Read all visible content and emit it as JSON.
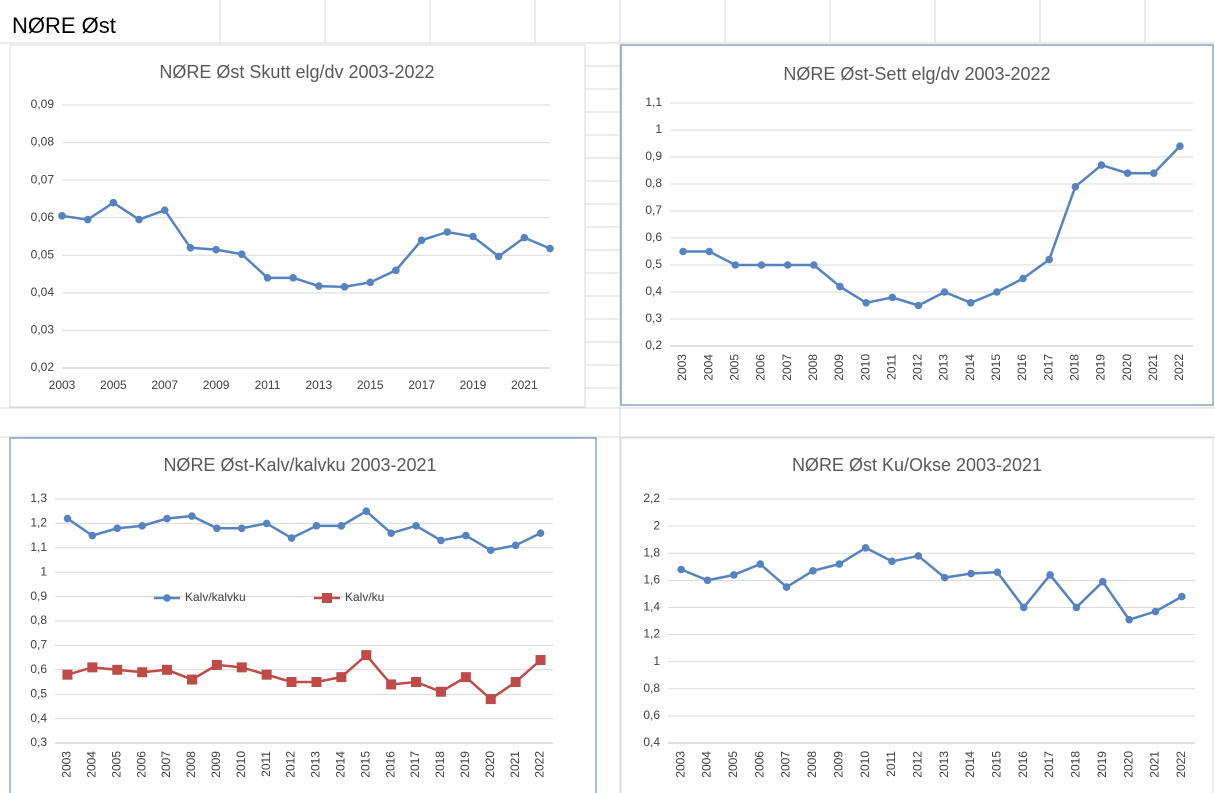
{
  "sheet_title": "NØRE Øst",
  "chart_data": [
    {
      "type": "line",
      "title": "NØRE Øst Skutt elg/dv 2003-2022",
      "categories": [
        "2003",
        null,
        "2005",
        null,
        "2007",
        null,
        "2009",
        null,
        "2011",
        null,
        "2013",
        null,
        "2015",
        null,
        "2017",
        null,
        "2019",
        null,
        "2021",
        null
      ],
      "values": [
        0.0605,
        0.0595,
        0.064,
        0.0595,
        0.062,
        0.052,
        0.0515,
        0.0503,
        0.044,
        0.044,
        0.0418,
        0.0416,
        0.0428,
        0.046,
        0.054,
        0.0562,
        0.055,
        0.0497,
        0.0547,
        0.0518
      ],
      "color": "#5683c0",
      "ylim": [
        0.02,
        0.09
      ],
      "yticks": [
        {
          "value": 0.02,
          "label": "0,02"
        },
        {
          "value": 0.03,
          "label": "0,03"
        },
        {
          "value": 0.04,
          "label": "0,04"
        },
        {
          "value": 0.05,
          "label": "0,05"
        },
        {
          "value": 0.06,
          "label": "0,06"
        },
        {
          "value": 0.07,
          "label": "0,07"
        },
        {
          "value": 0.08,
          "label": "0,08"
        },
        {
          "value": 0.09,
          "label": "0,09"
        }
      ],
      "grid": true
    },
    {
      "type": "line",
      "title": "NØRE Øst-Sett elg/dv 2003-2022",
      "categories": [
        "2003",
        "2004",
        "2005",
        "2006",
        "2007",
        "2008",
        "2009",
        "2010",
        "2011",
        "2012",
        "2013",
        "2014",
        "2015",
        "2016",
        "2017",
        "2018",
        "2019",
        "2020",
        "2021",
        "2022"
      ],
      "values": [
        0.55,
        0.55,
        0.5,
        0.5,
        0.5,
        0.5,
        0.42,
        0.36,
        0.38,
        0.35,
        0.4,
        0.36,
        0.4,
        0.45,
        0.52,
        0.79,
        0.87,
        0.84,
        0.84,
        0.94
      ],
      "color": "#5683c0",
      "ylim": [
        0.2,
        1.1
      ],
      "yticks": [
        {
          "value": 0.2,
          "label": "0,2"
        },
        {
          "value": 0.3,
          "label": "0,3"
        },
        {
          "value": 0.4,
          "label": "0,4"
        },
        {
          "value": 0.5,
          "label": "0,5"
        },
        {
          "value": 0.6,
          "label": "0,6"
        },
        {
          "value": 0.7,
          "label": "0,7"
        },
        {
          "value": 0.8,
          "label": "0,8"
        },
        {
          "value": 0.9,
          "label": "0,9"
        },
        1,
        {
          "value": 1.1,
          "label": "1,1"
        }
      ],
      "grid": true
    },
    {
      "type": "line",
      "title": "NØRE Øst-Kalv/kalvku 2003-2021",
      "categories": [
        "2003",
        "2004",
        "2005",
        "2006",
        "2007",
        "2008",
        "2009",
        "2010",
        "2011",
        "2012",
        "2013",
        "2014",
        "2015",
        "2016",
        "2017",
        "2018",
        "2019",
        "2020",
        "2021",
        "2022"
      ],
      "series": [
        {
          "name": "Kalv/kalvku",
          "color": "#5683c0",
          "marker": "circle",
          "values": [
            1.22,
            1.15,
            1.18,
            1.19,
            1.22,
            1.23,
            1.18,
            1.18,
            1.2,
            1.14,
            1.19,
            1.19,
            1.25,
            1.16,
            1.19,
            1.13,
            1.15,
            1.09,
            1.11,
            1.16
          ]
        },
        {
          "name": "Kalv/ku",
          "color": "#be4b48",
          "marker": "square",
          "values": [
            0.58,
            0.61,
            0.6,
            0.59,
            0.6,
            0.56,
            0.62,
            0.61,
            0.58,
            0.55,
            0.55,
            0.57,
            0.66,
            0.54,
            0.55,
            0.51,
            0.57,
            0.48,
            0.55,
            0.64
          ]
        }
      ],
      "ylim": [
        0.3,
        1.3
      ],
      "yticks": [
        {
          "value": 0.3,
          "label": "0,3"
        },
        {
          "value": 0.4,
          "label": "0,4"
        },
        {
          "value": 0.5,
          "label": "0,5"
        },
        {
          "value": 0.6,
          "label": "0,6"
        },
        {
          "value": 0.7,
          "label": "0,7"
        },
        {
          "value": 0.8,
          "label": "0,8"
        },
        {
          "value": 0.9,
          "label": "0,9"
        },
        1,
        {
          "value": 1.1,
          "label": "1,1"
        },
        {
          "value": 1.2,
          "label": "1,2"
        },
        {
          "value": 1.3,
          "label": "1,3"
        }
      ],
      "grid": true,
      "legend": "center"
    },
    {
      "type": "line",
      "title": "NØRE Øst Ku/Okse 2003-2021",
      "categories": [
        "2003",
        "2004",
        "2005",
        "2006",
        "2007",
        "2008",
        "2009",
        "2010",
        "2011",
        "2012",
        "2013",
        "2014",
        "2015",
        "2016",
        "2017",
        "2018",
        "2019",
        "2020",
        "2021",
        "2022"
      ],
      "values": [
        1.68,
        1.6,
        1.64,
        1.72,
        1.55,
        1.67,
        1.72,
        1.84,
        1.74,
        1.78,
        1.62,
        1.65,
        1.66,
        1.4,
        1.64,
        1.4,
        1.59,
        1.31,
        1.37,
        1.48
      ],
      "color": "#5683c0",
      "ylim": [
        0.4,
        2.2
      ],
      "yticks": [
        {
          "value": 0.4,
          "label": "0,4"
        },
        {
          "value": 0.6,
          "label": "0,6"
        },
        {
          "value": 0.8,
          "label": "0,8"
        },
        1,
        {
          "value": 1.2,
          "label": "1,2"
        },
        {
          "value": 1.4,
          "label": "1,4"
        },
        {
          "value": 1.6,
          "label": "1,6"
        },
        {
          "value": 1.8,
          "label": "1,8"
        },
        2,
        {
          "value": 2.2,
          "label": "2,2"
        }
      ],
      "grid": true
    }
  ]
}
